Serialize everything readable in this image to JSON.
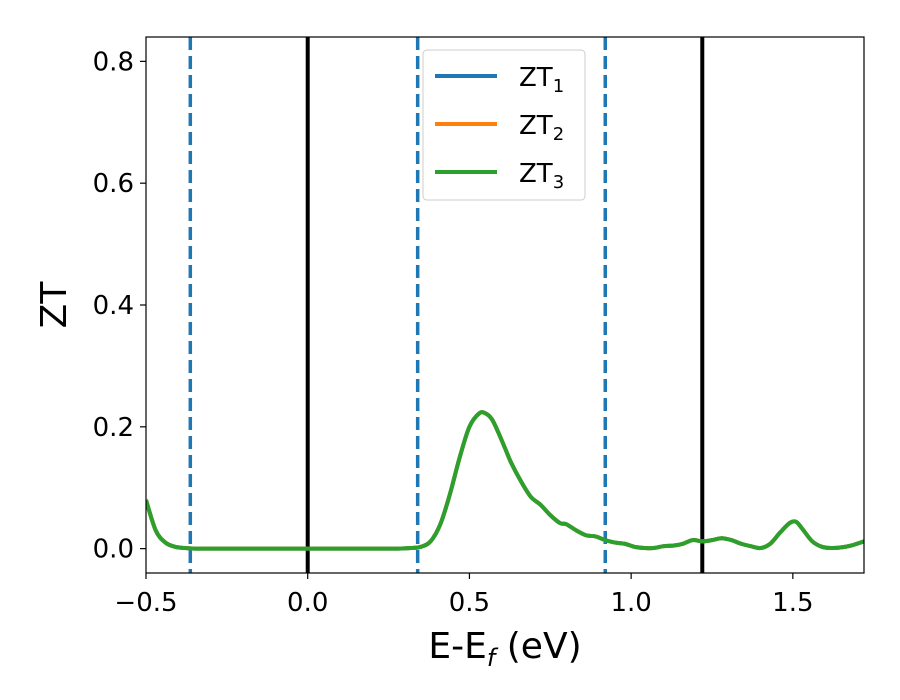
{
  "chart_data": {
    "type": "line",
    "xlabel": {
      "main": "E-E",
      "sub": "f",
      "unit": " (eV)"
    },
    "ylabel": "ZT",
    "xlim": [
      -0.5,
      1.72
    ],
    "ylim": [
      -0.04,
      0.84
    ],
    "xticks": [
      -0.5,
      0.0,
      0.5,
      1.0,
      1.5
    ],
    "xtick_labels": [
      "−0.5",
      "0.0",
      "0.5",
      "1.0",
      "1.5"
    ],
    "yticks": [
      0.0,
      0.2,
      0.4,
      0.6,
      0.8
    ],
    "ytick_labels": [
      "0.0",
      "0.2",
      "0.4",
      "0.6",
      "0.8"
    ],
    "grid": false,
    "legend_placement": "top-center",
    "series": [
      {
        "name": "ZT",
        "sub": "1",
        "color": "#1f77b4"
      },
      {
        "name": "ZT",
        "sub": "2",
        "color": "#ff7f0e"
      },
      {
        "name": "ZT",
        "sub": "3",
        "color": "#2ca02c"
      }
    ],
    "x": [
      -0.5,
      -0.47,
      -0.44,
      -0.41,
      -0.38,
      -0.35,
      -0.3,
      -0.2,
      -0.1,
      0.0,
      0.1,
      0.2,
      0.28,
      0.32,
      0.35,
      0.38,
      0.41,
      0.44,
      0.47,
      0.5,
      0.53,
      0.55,
      0.57,
      0.59,
      0.61,
      0.63,
      0.66,
      0.69,
      0.72,
      0.75,
      0.78,
      0.8,
      0.83,
      0.86,
      0.89,
      0.92,
      0.95,
      0.98,
      1.01,
      1.04,
      1.07,
      1.1,
      1.13,
      1.16,
      1.19,
      1.22,
      1.25,
      1.28,
      1.31,
      1.34,
      1.37,
      1.4,
      1.43,
      1.46,
      1.49,
      1.51,
      1.53,
      1.56,
      1.59,
      1.62,
      1.65,
      1.68,
      1.72
    ],
    "y_shared": [
      0.08,
      0.03,
      0.01,
      0.003,
      0.001,
      0.0,
      0.0,
      0.0,
      0.0,
      0.0,
      0.0,
      0.0,
      0.0,
      0.001,
      0.003,
      0.012,
      0.04,
      0.09,
      0.15,
      0.2,
      0.222,
      0.222,
      0.212,
      0.19,
      0.165,
      0.14,
      0.11,
      0.085,
      0.072,
      0.055,
      0.042,
      0.04,
      0.03,
      0.022,
      0.02,
      0.014,
      0.01,
      0.008,
      0.003,
      0.001,
      0.001,
      0.004,
      0.005,
      0.008,
      0.014,
      0.012,
      0.014,
      0.017,
      0.014,
      0.008,
      0.004,
      0.001,
      0.008,
      0.026,
      0.042,
      0.044,
      0.032,
      0.012,
      0.003,
      0.001,
      0.002,
      0.005,
      0.012
    ],
    "vlines_dashed": [
      -0.363,
      0.34,
      0.92
    ],
    "vlines_solid": [
      0.0,
      1.22
    ]
  }
}
